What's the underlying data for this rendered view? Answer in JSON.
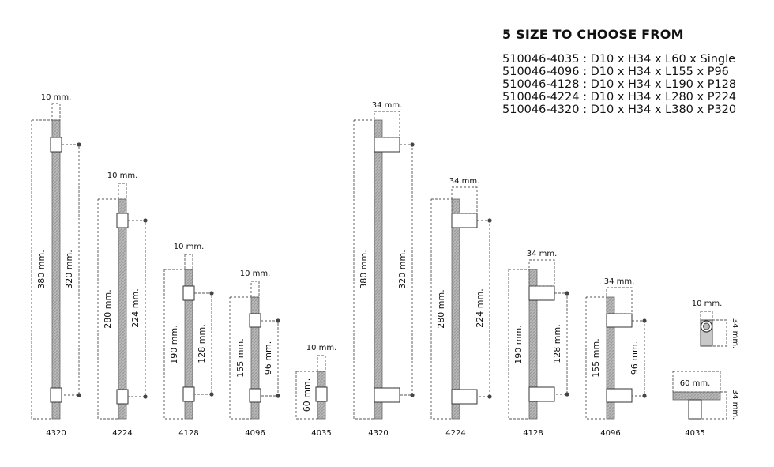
{
  "title": "5 SIZE TO CHOOSE FROM",
  "specs": [
    "510046-4035  : D10 x H34 x L60 x Single",
    "510046-4096  : D10 x H34 x L155 x P96",
    "510046-4128  : D10 x H34 x L190 x P128",
    "510046-4224  : D10 x H34 x L280 x P224",
    "510046-4320  : D10 x H34 x L380 x P320"
  ],
  "front_views": [
    {
      "code": "4320",
      "diameter": "10 mm.",
      "length": "380 mm.",
      "pitch": "320 mm."
    },
    {
      "code": "4224",
      "diameter": "10 mm.",
      "length": "280 mm.",
      "pitch": "224 mm."
    },
    {
      "code": "4128",
      "diameter": "10 mm.",
      "length": "190 mm.",
      "pitch": "128 mm."
    },
    {
      "code": "4096",
      "diameter": "10 mm.",
      "length": "155 mm.",
      "pitch": "96 mm."
    },
    {
      "code": "4035",
      "diameter": "10 mm.",
      "length": "60 mm.",
      "pitch": ""
    }
  ],
  "side_views": [
    {
      "code": "4320",
      "depth": "34 mm.",
      "length": "380 mm.",
      "pitch": "320 mm."
    },
    {
      "code": "4224",
      "depth": "34 mm.",
      "length": "280 mm.",
      "pitch": "224 mm."
    },
    {
      "code": "4128",
      "depth": "34 mm.",
      "length": "190 mm.",
      "pitch": "128 mm."
    },
    {
      "code": "4096",
      "depth": "34 mm.",
      "length": "155 mm.",
      "pitch": "96 mm."
    }
  ],
  "single_knob": {
    "code": "4035",
    "top_diameter": "10 mm.",
    "top_height": "34 mm.",
    "bottom_length": "60 mm.",
    "bottom_height": "34 mm."
  }
}
